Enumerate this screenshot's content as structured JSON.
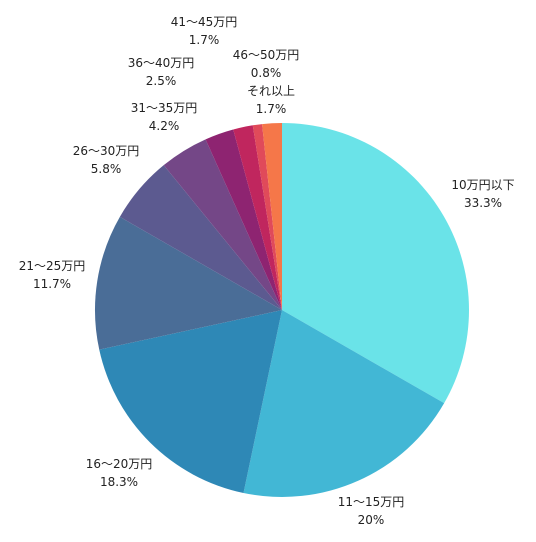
{
  "chart_data": {
    "type": "pie",
    "title": "",
    "start": "top",
    "direction": "clockwise",
    "slices": [
      {
        "label": "10万円以下",
        "value_text": "33.3%",
        "value": 33.3,
        "color": "#6AE3E8"
      },
      {
        "label": "11～15万円",
        "value_text": "20%",
        "value": 20.0,
        "color": "#42B7D5"
      },
      {
        "label": "16～20万円",
        "value_text": "18.3%",
        "value": 18.3,
        "color": "#2E88B6"
      },
      {
        "label": "21～25万円",
        "value_text": "11.7%",
        "value": 11.7,
        "color": "#4A6D97"
      },
      {
        "label": "26～30万円",
        "value_text": "5.8%",
        "value": 5.8,
        "color": "#5C5A90"
      },
      {
        "label": "31～35万円",
        "value_text": "4.2%",
        "value": 4.2,
        "color": "#744787"
      },
      {
        "label": "36～40万円",
        "value_text": "2.5%",
        "value": 2.5,
        "color": "#8E2471"
      },
      {
        "label": "41～45万円",
        "value_text": "1.7%",
        "value": 1.7,
        "color": "#C0265E"
      },
      {
        "label": "46～50万円",
        "value_text": "0.8%",
        "value": 0.8,
        "color": "#E04A5A"
      },
      {
        "label": "それ以上",
        "value_text": "1.7%",
        "value": 1.7,
        "color": "#F57749"
      }
    ]
  }
}
